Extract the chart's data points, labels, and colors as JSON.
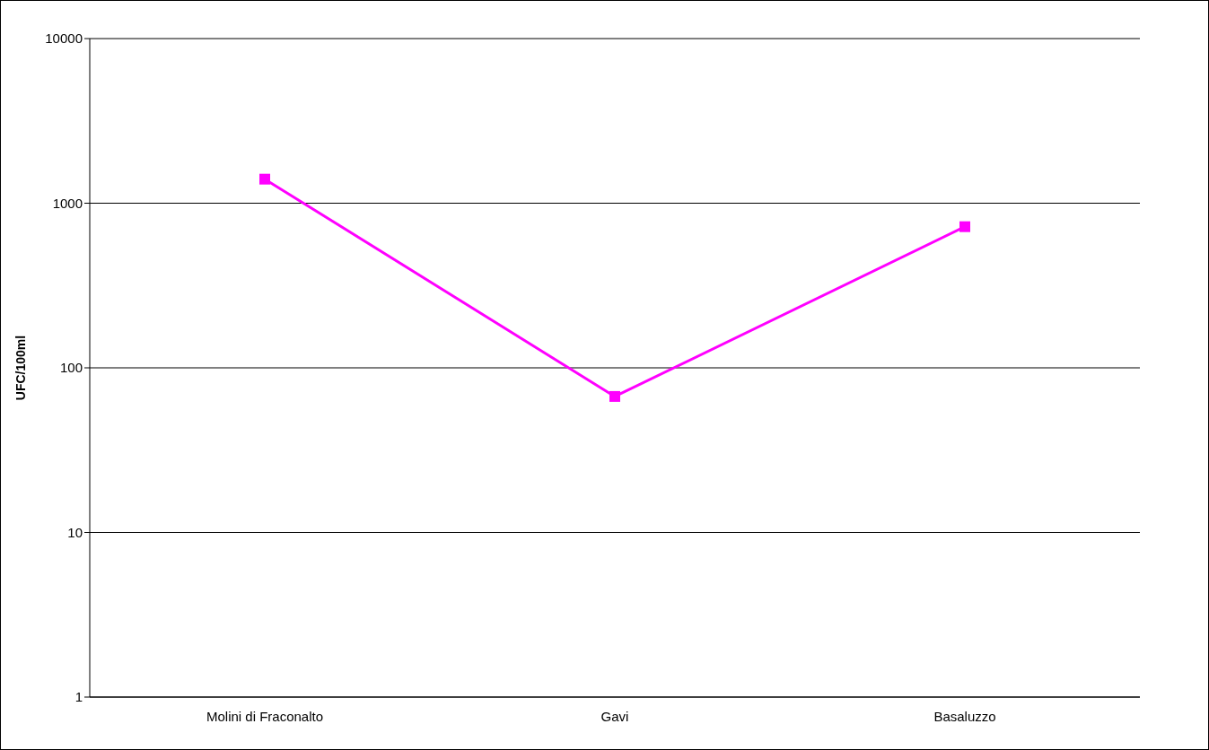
{
  "chart_data": {
    "type": "line",
    "ylabel": "UFC/100ml",
    "categories": [
      "Molini di Fraconalto",
      "Gavi",
      "Basaluzzo"
    ],
    "series": [
      {
        "color": "#ff00ff",
        "values": [
          1400,
          67,
          720
        ]
      }
    ],
    "log": "y",
    "ylim": [
      1,
      10000
    ],
    "yticks": [
      1,
      10,
      100,
      1000,
      10000
    ],
    "grid": "y",
    "marker": "square",
    "line_style": "solid"
  }
}
